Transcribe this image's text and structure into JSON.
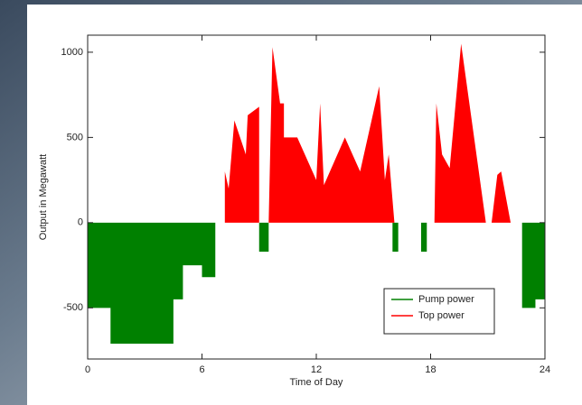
{
  "chart_data": {
    "type": "area",
    "xlabel": "Time of Day",
    "ylabel": "Output in Megawatt",
    "xlim": [
      0,
      24
    ],
    "xticks": [
      0,
      6,
      12,
      18,
      24
    ],
    "ylim": [
      -800,
      1100
    ],
    "yticks": [
      -500,
      0,
      500,
      1000
    ],
    "legend": "lower right",
    "series": [
      {
        "name": "Pump power",
        "color": "#008000",
        "x": [
          0,
          1.2,
          1.2,
          4.5,
          4.5,
          5,
          5,
          6,
          6,
          6.7,
          6.7,
          9,
          9,
          9.5,
          9.5,
          16,
          16,
          16.3,
          16.3,
          17.5,
          17.5,
          17.8,
          17.8,
          22.8,
          22.8,
          23.5,
          23.5,
          24
        ],
        "values": [
          -500,
          -500,
          -710,
          -710,
          -450,
          -450,
          -250,
          -250,
          -320,
          -320,
          0,
          0,
          -170,
          -170,
          0,
          0,
          -170,
          -170,
          0,
          0,
          -170,
          -170,
          0,
          0,
          -500,
          -500,
          -450,
          -450
        ]
      },
      {
        "name": "Top power",
        "color": "#ff0000",
        "x": [
          7.2,
          7.2,
          7.4,
          7.7,
          8.3,
          8.4,
          9.0,
          9.0,
          9.5,
          9.7,
          10.1,
          10.3,
          10.3,
          11,
          12,
          12.2,
          12.4,
          13.5,
          14.3,
          15.3,
          15.6,
          15.8,
          16.1,
          18.2,
          18.3,
          18.6,
          19,
          19.6,
          20.9,
          21.2,
          21.5,
          21.7,
          22.2
        ],
        "values": [
          0,
          300,
          200,
          600,
          400,
          630,
          680,
          0,
          0,
          1030,
          700,
          700,
          500,
          500,
          250,
          700,
          220,
          500,
          300,
          800,
          250,
          400,
          0,
          0,
          700,
          400,
          320,
          1050,
          0,
          0,
          280,
          300,
          0
        ]
      }
    ]
  }
}
